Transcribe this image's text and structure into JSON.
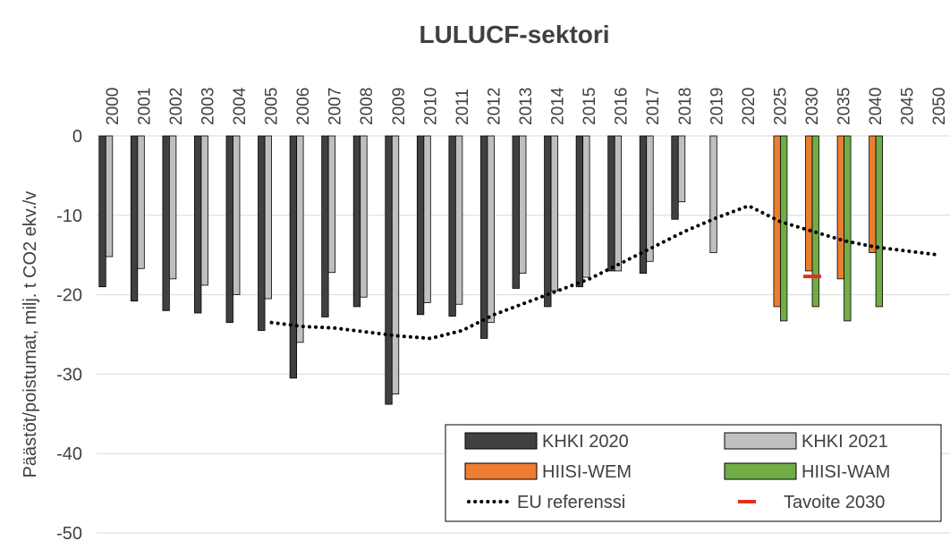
{
  "chart_data": {
    "type": "bar",
    "title": "LULUCF-sektori",
    "y_label": "Päästöt/poistumat, milj. t CO2 ekv./v",
    "categories": [
      "2000",
      "2001",
      "2002",
      "2003",
      "2004",
      "2005",
      "2006",
      "2007",
      "2008",
      "2009",
      "2010",
      "2011",
      "2012",
      "2013",
      "2014",
      "2015",
      "2016",
      "2017",
      "2018",
      "2019",
      "2020",
      "2025",
      "2030",
      "2035",
      "2040",
      "2045",
      "2050"
    ],
    "ylim": [
      -50,
      0
    ],
    "yticks": [
      -50,
      -40,
      -30,
      -20,
      -10,
      0
    ],
    "grid": true,
    "series": [
      {
        "name": "KHKI 2020",
        "color": "#404040",
        "style": "bar",
        "slot": 0,
        "values": [
          -19,
          -20.8,
          -22,
          -22.3,
          -23.5,
          -24.5,
          -30.5,
          -22.8,
          -21.5,
          -33.8,
          -22.5,
          -22.7,
          -25.5,
          -19.2,
          -21.5,
          -19,
          -17,
          -17.3,
          -10.5,
          null,
          null,
          null,
          null,
          null,
          null,
          null,
          null
        ]
      },
      {
        "name": "KHKI 2021",
        "color": "#bfbfbf",
        "style": "bar",
        "slot": 1,
        "values": [
          -15.2,
          -16.7,
          -18,
          -18.8,
          -20,
          -20.5,
          -26,
          -17.2,
          -20.3,
          -32.5,
          -21,
          -21.2,
          -23.5,
          -17.3,
          -19.5,
          -17.8,
          -17,
          -15.8,
          -8.3,
          -14.7,
          null,
          null,
          null,
          null,
          null,
          null,
          null
        ]
      },
      {
        "name": "HIISI-WEM",
        "color": "#ed7d31",
        "style": "bar",
        "slot": 1,
        "values": [
          null,
          null,
          null,
          null,
          null,
          null,
          null,
          null,
          null,
          null,
          null,
          null,
          null,
          null,
          null,
          null,
          null,
          null,
          null,
          null,
          null,
          -21.5,
          -17,
          -18,
          -14.7,
          null,
          null
        ]
      },
      {
        "name": "HIISI-WAM",
        "color": "#70ad47",
        "style": "bar",
        "slot": 2,
        "values": [
          null,
          null,
          null,
          null,
          null,
          null,
          null,
          null,
          null,
          null,
          null,
          null,
          null,
          null,
          null,
          null,
          null,
          null,
          null,
          null,
          null,
          -23.3,
          -21.5,
          -23.3,
          -21.5,
          null,
          null
        ]
      },
      {
        "name": "EU referenssi",
        "color": "#000000",
        "style": "dotted-line",
        "values": [
          null,
          null,
          null,
          null,
          null,
          -23.5,
          -24,
          -24.2,
          -24.7,
          -25.2,
          -25.5,
          -24.5,
          -22.5,
          -21,
          -19.5,
          -18,
          -16,
          -14,
          -12,
          -10.3,
          -8.8,
          -10.8,
          -12,
          -13.2,
          -14,
          -14.5,
          -15
        ]
      },
      {
        "name": "Tavoite 2030",
        "color": "#e0301e",
        "style": "dash-marker",
        "values": [
          null,
          null,
          null,
          null,
          null,
          null,
          null,
          null,
          null,
          null,
          null,
          null,
          null,
          null,
          null,
          null,
          null,
          null,
          null,
          null,
          null,
          null,
          -17.7,
          null,
          null,
          null,
          null
        ]
      }
    ]
  }
}
